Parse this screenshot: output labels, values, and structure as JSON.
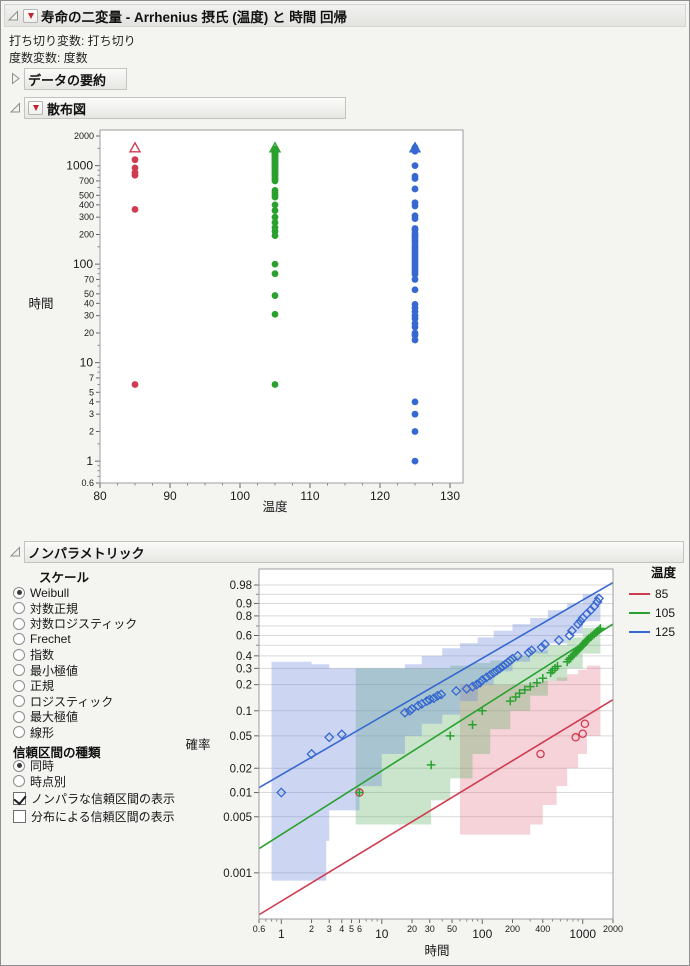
{
  "header": {
    "title": "寿命の二変量 - Arrhenius 摂氏 (温度) と 時間 回帰"
  },
  "meta": {
    "censor": "打ち切り変数: 打ち切り",
    "freq": "度数変数: 度数"
  },
  "sections": {
    "data_summary": "データの要約",
    "scatter": "散布図",
    "nonparametric": "ノンパラメトリック"
  },
  "controls": {
    "scale_title": "スケール",
    "scale_options": [
      {
        "label": "Weibull",
        "selected": true
      },
      {
        "label": "対数正規",
        "selected": false
      },
      {
        "label": "対数ロジスティック",
        "selected": false
      },
      {
        "label": "Frechet",
        "selected": false
      },
      {
        "label": "指数",
        "selected": false
      },
      {
        "label": "最小極値",
        "selected": false
      },
      {
        "label": "正規",
        "selected": false
      },
      {
        "label": "ロジスティック",
        "selected": false
      },
      {
        "label": "最大極値",
        "selected": false
      },
      {
        "label": "線形",
        "selected": false
      }
    ],
    "ci_title": "信頼区間の種類",
    "ci_options": [
      {
        "label": "同時",
        "selected": true
      },
      {
        "label": "時点別",
        "selected": false
      }
    ],
    "checkboxes": [
      {
        "label": "ノンパラな信頼区間の表示",
        "checked": true
      },
      {
        "label": "分布による信頼区間の表示",
        "checked": false
      }
    ]
  },
  "legend": {
    "title": "温度",
    "entries": [
      {
        "label": "85",
        "color": "#cf3b50"
      },
      {
        "label": "105",
        "color": "#2aa12e"
      },
      {
        "label": "125",
        "color": "#3668d0"
      }
    ]
  },
  "chart_data": [
    {
      "type": "scatter",
      "name": "scatter-plot",
      "xlabel": "温度",
      "ylabel": "時間",
      "xscale": "linear",
      "yscale": "log10",
      "xlim": [
        80,
        131.9
      ],
      "ylim": [
        0.6,
        2300
      ],
      "x_ticks": [
        80,
        90,
        100,
        110,
        120,
        130
      ],
      "y_ticks_major": [
        1000,
        100,
        10,
        1
      ],
      "y_ticks_small": [
        2000,
        700,
        500,
        400,
        300,
        200,
        70,
        50,
        40,
        30,
        20,
        7,
        5,
        4,
        3,
        2,
        0.6
      ],
      "y_ticks_minor": [
        1500,
        900,
        800,
        600,
        150,
        90,
        80,
        60,
        15,
        9,
        8,
        6,
        1.5,
        0.9,
        0.8,
        0.7
      ],
      "grid": false,
      "series": [
        {
          "name": "85",
          "color": "#cf3b50",
          "x": 85,
          "censored_at": 1500,
          "failures": [
            1150,
            950,
            850,
            800,
            360,
            6
          ]
        },
        {
          "name": "105",
          "color": "#2aa12e",
          "x": 105,
          "censored_at": 1500,
          "failures": [
            1480,
            1450,
            1420,
            1390,
            1360,
            1330,
            1300,
            1270,
            1240,
            1210,
            1180,
            1150,
            1120,
            1090,
            1060,
            1030,
            1000,
            970,
            940,
            910,
            880,
            850,
            820,
            790,
            760,
            730,
            700,
            560,
            530,
            500,
            480,
            400,
            350,
            300,
            265,
            235,
            215,
            195,
            100,
            80,
            48,
            31,
            6
          ]
        },
        {
          "name": "125",
          "color": "#3668d0",
          "x": 125,
          "censored_at": 1500,
          "failures": [
            1530,
            1470,
            1430,
            1400,
            1000,
            780,
            740,
            580,
            420,
            390,
            310,
            290,
            230,
            222,
            205,
            195,
            185,
            175,
            165,
            155,
            148,
            140,
            133,
            126,
            120,
            114,
            108,
            103,
            98,
            93,
            88,
            83,
            79,
            70,
            55,
            39,
            36,
            33,
            30,
            28,
            25,
            23,
            20,
            19,
            17,
            4,
            3,
            2,
            1
          ]
        }
      ]
    },
    {
      "type": "probability-plot",
      "name": "weibull-probability-plot",
      "xlabel": "時間",
      "ylabel": "確率",
      "xscale": "log10",
      "yscale": "weibull",
      "xlim": [
        0.6,
        2000
      ],
      "plim": [
        0.000265,
        0.998
      ],
      "x_ticks_major": [
        1,
        10,
        100,
        1000
      ],
      "x_ticks_small": [
        0.6,
        2,
        3,
        4,
        5,
        6,
        20,
        30,
        50,
        200,
        400,
        2000
      ],
      "x_ticks_minor": [
        0.7,
        0.8,
        0.9,
        7,
        8,
        9,
        40,
        60,
        70,
        80,
        90,
        300,
        500,
        600,
        700,
        800,
        900
      ],
      "y_ticks": [
        0.98,
        0.9,
        0.8,
        0.6,
        0.4,
        0.3,
        0.2,
        0.1,
        0.05,
        0.02,
        0.01,
        0.005,
        0.001
      ],
      "y_ticks_minor": [
        0.95,
        0.7,
        0.5
      ],
      "grid": true,
      "legend_position": "right",
      "series": [
        {
          "name": "85",
          "color": "#cf3b50",
          "marker": "circle",
          "band_fill": "rgba(221,110,125,0.30)",
          "band_top": [
            [
              60,
              0.2
            ],
            [
              300,
              0.21
            ],
            [
              400,
              0.22
            ],
            [
              550,
              0.24
            ],
            [
              700,
              0.26
            ],
            [
              900,
              0.29
            ],
            [
              1100,
              0.32
            ],
            [
              1500,
              0.35
            ]
          ],
          "band_bottom": [
            [
              60,
              0.002
            ],
            [
              300,
              0.003
            ],
            [
              400,
              0.004
            ],
            [
              550,
              0.007
            ],
            [
              700,
              0.012
            ],
            [
              900,
              0.02
            ],
            [
              1100,
              0.03
            ],
            [
              1500,
              0.05
            ]
          ],
          "line": [
            [
              0.6,
              0.0003
            ],
            [
              2000,
              0.135
            ]
          ],
          "points": [
            [
              6,
              0.01
            ],
            [
              380,
              0.03
            ],
            [
              850,
              0.048
            ],
            [
              1000,
              0.053
            ],
            [
              1050,
              0.07
            ]
          ]
        },
        {
          "name": "105",
          "color": "#2aa12e",
          "marker": "plus",
          "band_fill": "rgba(90,175,95,0.32)",
          "band_top": [
            [
              5.5,
              0.3
            ],
            [
              31,
              0.3
            ],
            [
              48,
              0.32
            ],
            [
              80,
              0.34
            ],
            [
              120,
              0.36
            ],
            [
              190,
              0.4
            ],
            [
              300,
              0.45
            ],
            [
              450,
              0.5
            ],
            [
              700,
              0.58
            ],
            [
              1000,
              0.68
            ],
            [
              1500,
              0.8
            ]
          ],
          "band_bottom": [
            [
              5.5,
              0.0015
            ],
            [
              31,
              0.004
            ],
            [
              48,
              0.008
            ],
            [
              80,
              0.015
            ],
            [
              120,
              0.03
            ],
            [
              190,
              0.06
            ],
            [
              300,
              0.1
            ],
            [
              450,
              0.15
            ],
            [
              700,
              0.22
            ],
            [
              1000,
              0.3
            ],
            [
              1500,
              0.42
            ]
          ],
          "line": [
            [
              0.6,
              0.002
            ],
            [
              2000,
              0.72
            ]
          ],
          "points": [
            [
              6,
              0.01
            ],
            [
              31,
              0.022
            ],
            [
              48,
              0.05
            ],
            [
              80,
              0.068
            ],
            [
              100,
              0.1
            ],
            [
              190,
              0.13
            ],
            [
              215,
              0.145
            ],
            [
              235,
              0.16
            ],
            [
              265,
              0.175
            ],
            [
              300,
              0.19
            ],
            [
              350,
              0.21
            ],
            [
              400,
              0.235
            ],
            [
              480,
              0.27
            ],
            [
              500,
              0.285
            ],
            [
              530,
              0.3
            ],
            [
              560,
              0.315
            ],
            [
              700,
              0.35
            ],
            [
              730,
              0.37
            ],
            [
              760,
              0.385
            ],
            [
              790,
              0.4
            ],
            [
              820,
              0.415
            ],
            [
              850,
              0.43
            ],
            [
              880,
              0.445
            ],
            [
              910,
              0.46
            ],
            [
              940,
              0.475
            ],
            [
              970,
              0.49
            ],
            [
              1000,
              0.5
            ],
            [
              1030,
              0.515
            ],
            [
              1060,
              0.53
            ],
            [
              1090,
              0.545
            ],
            [
              1120,
              0.555
            ],
            [
              1150,
              0.57
            ],
            [
              1200,
              0.585
            ],
            [
              1250,
              0.6
            ],
            [
              1300,
              0.615
            ],
            [
              1350,
              0.63
            ],
            [
              1400,
              0.645
            ],
            [
              1450,
              0.66
            ],
            [
              1500,
              0.675
            ]
          ]
        },
        {
          "name": "125",
          "color": "#3668d0",
          "marker": "diamond",
          "band_fill": "rgba(100,130,215,0.33)",
          "band_top": [
            [
              0.8,
              0.35
            ],
            [
              2,
              0.33
            ],
            [
              3,
              0.3
            ],
            [
              10,
              0.3
            ],
            [
              17,
              0.33
            ],
            [
              25,
              0.4
            ],
            [
              40,
              0.47
            ],
            [
              60,
              0.52
            ],
            [
              90,
              0.58
            ],
            [
              130,
              0.65
            ],
            [
              200,
              0.72
            ],
            [
              300,
              0.78
            ],
            [
              450,
              0.85
            ],
            [
              700,
              0.9
            ],
            [
              1000,
              0.95
            ],
            [
              1500,
              0.995
            ]
          ],
          "band_bottom": [
            [
              0.8,
              0.0008
            ],
            [
              2.8,
              0.0008
            ],
            [
              3,
              0.0025
            ],
            [
              6,
              0.006
            ],
            [
              10,
              0.012
            ],
            [
              17,
              0.03
            ],
            [
              25,
              0.05
            ],
            [
              40,
              0.07
            ],
            [
              60,
              0.09
            ],
            [
              90,
              0.13
            ],
            [
              130,
              0.2
            ],
            [
              200,
              0.28
            ],
            [
              300,
              0.35
            ],
            [
              450,
              0.42
            ],
            [
              700,
              0.52
            ],
            [
              1000,
              0.62
            ],
            [
              1500,
              0.75
            ]
          ],
          "line": [
            [
              0.6,
              0.0115
            ],
            [
              2000,
              0.985
            ]
          ],
          "points": [
            [
              1,
              0.01
            ],
            [
              2,
              0.03
            ],
            [
              3,
              0.048
            ],
            [
              4,
              0.052
            ],
            [
              17,
              0.095
            ],
            [
              19,
              0.1
            ],
            [
              20,
              0.105
            ],
            [
              23,
              0.115
            ],
            [
              25,
              0.12
            ],
            [
              28,
              0.13
            ],
            [
              30,
              0.135
            ],
            [
              33,
              0.14
            ],
            [
              36,
              0.15
            ],
            [
              39,
              0.155
            ],
            [
              55,
              0.17
            ],
            [
              70,
              0.18
            ],
            [
              80,
              0.19
            ],
            [
              88,
              0.2
            ],
            [
              95,
              0.21
            ],
            [
              100,
              0.225
            ],
            [
              110,
              0.24
            ],
            [
              120,
              0.255
            ],
            [
              130,
              0.27
            ],
            [
              140,
              0.285
            ],
            [
              150,
              0.3
            ],
            [
              160,
              0.315
            ],
            [
              170,
              0.33
            ],
            [
              180,
              0.345
            ],
            [
              190,
              0.36
            ],
            [
              200,
              0.375
            ],
            [
              225,
              0.4
            ],
            [
              290,
              0.43
            ],
            [
              310,
              0.45
            ],
            [
              390,
              0.48
            ],
            [
              420,
              0.51
            ],
            [
              580,
              0.55
            ],
            [
              740,
              0.6
            ],
            [
              780,
              0.65
            ],
            [
              900,
              0.72
            ],
            [
              950,
              0.75
            ],
            [
              1000,
              0.78
            ],
            [
              1100,
              0.82
            ],
            [
              1200,
              0.85
            ],
            [
              1300,
              0.88
            ],
            [
              1400,
              0.91
            ],
            [
              1450,
              0.93
            ]
          ]
        }
      ]
    }
  ]
}
